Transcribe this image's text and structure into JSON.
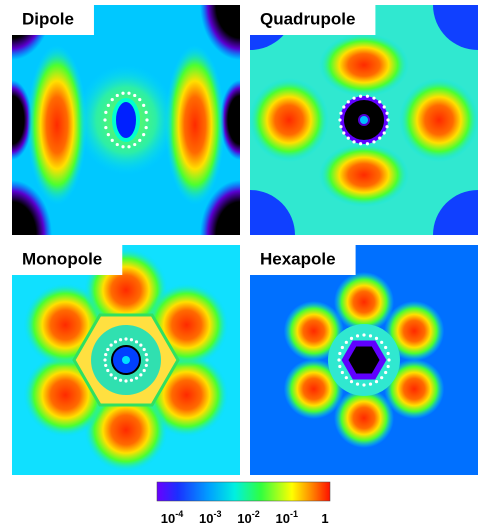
{
  "panels": [
    {
      "label": "Dipole"
    },
    {
      "label": "Quadrupole"
    },
    {
      "label": "Monopole"
    },
    {
      "label": "Hexapole"
    }
  ],
  "colorbar": {
    "ticks": [
      {
        "base": "10",
        "exponent": "-4"
      },
      {
        "base": "10",
        "exponent": "-3"
      },
      {
        "base": "10",
        "exponent": "-2"
      },
      {
        "base": "10",
        "exponent": "-1"
      },
      {
        "base": "1"
      }
    ]
  }
}
